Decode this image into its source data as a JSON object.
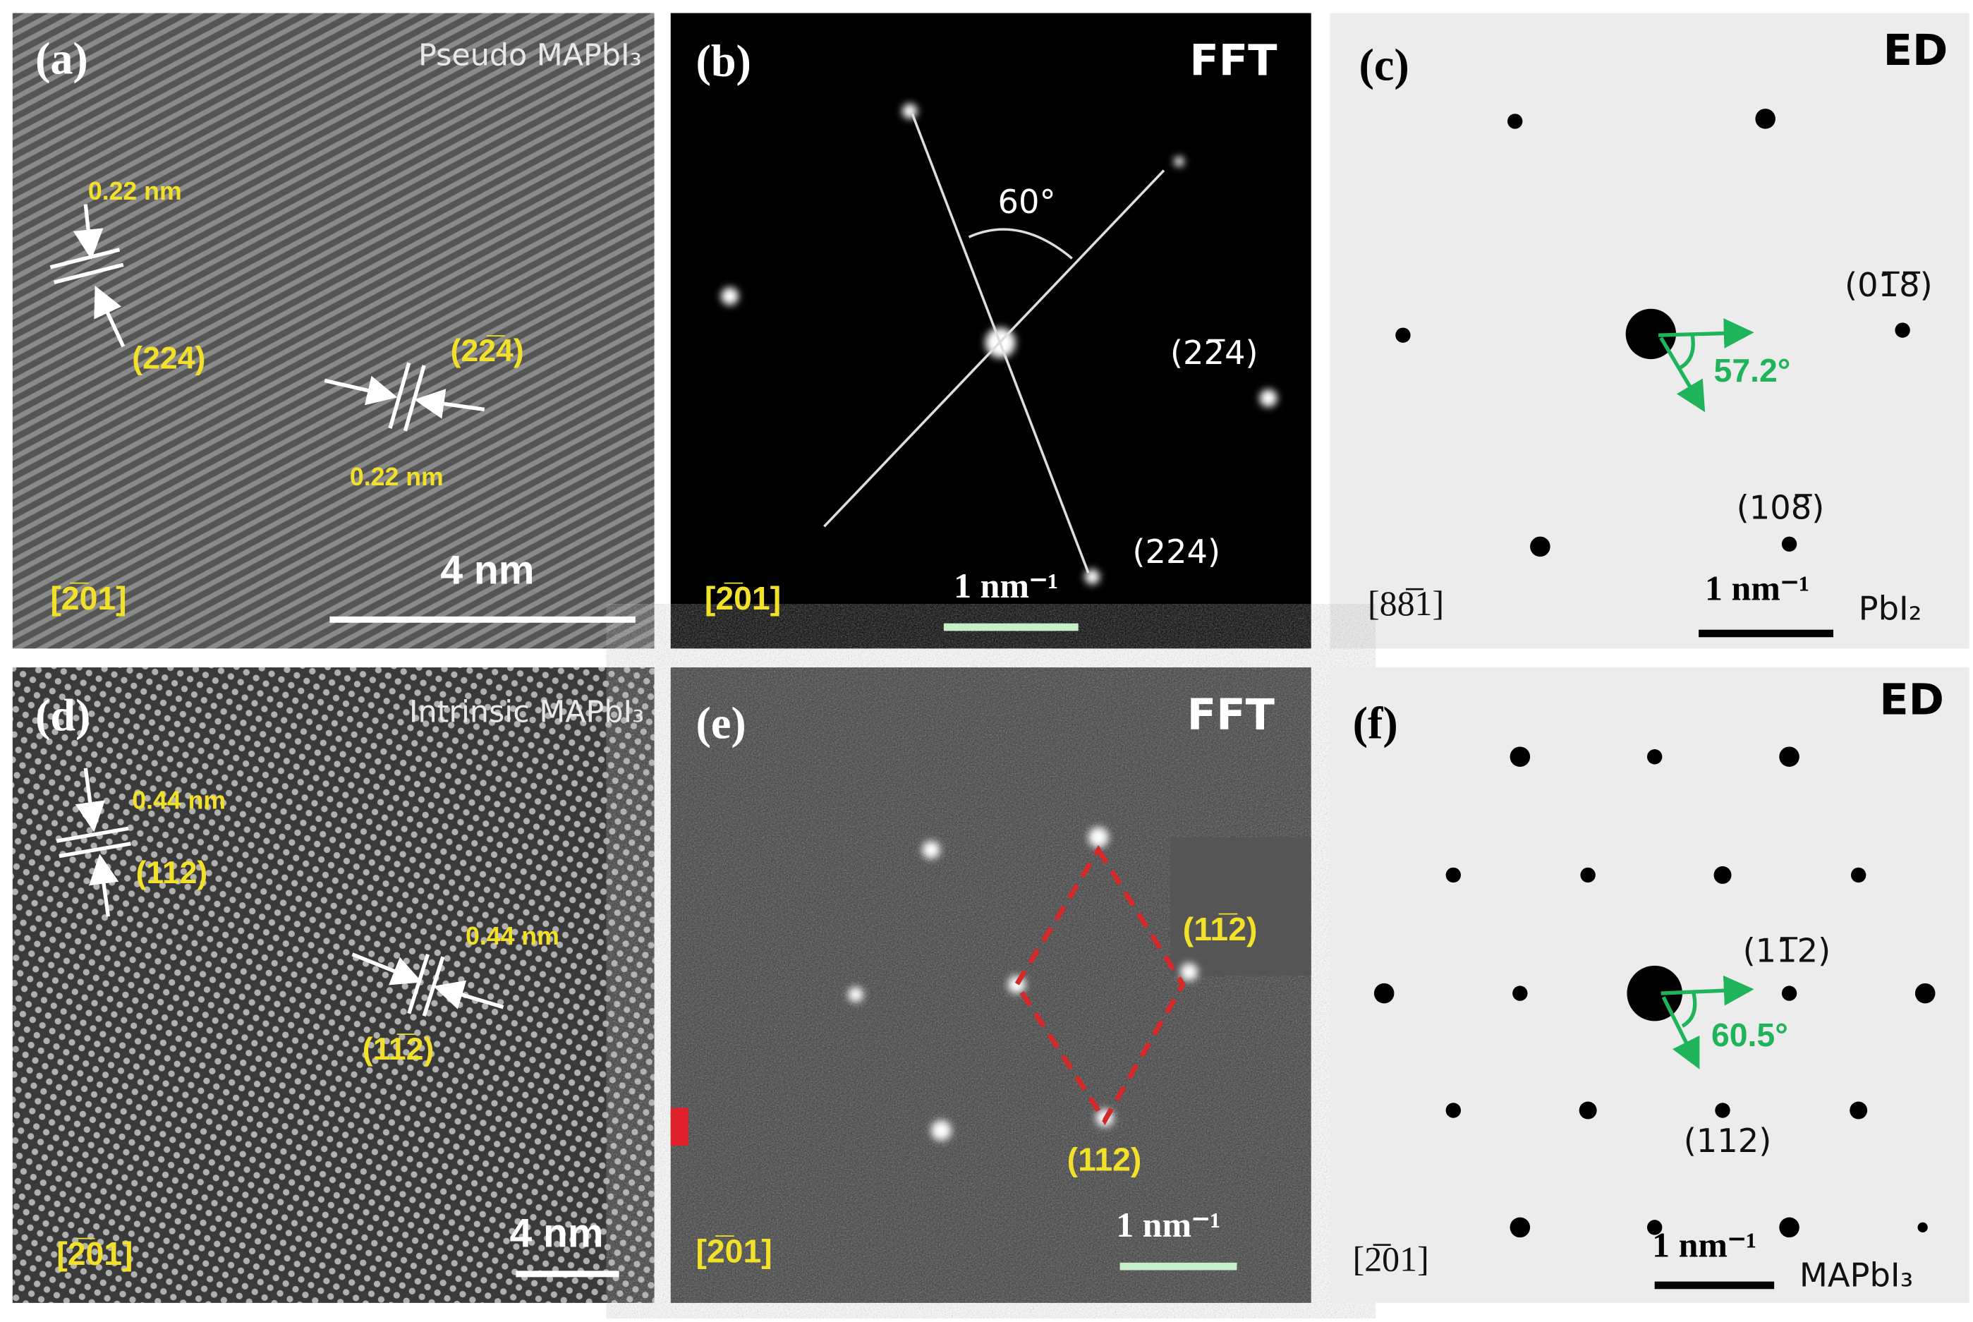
{
  "panels": [
    {
      "label": "(a)",
      "title": "Pseudo MAPbI₃",
      "annotations": [
        "0.22 nm",
        "(224)",
        "(22̅4)",
        "0.22 nm",
        "4 nm",
        "[2̅01]"
      ]
    },
    {
      "label": "(b)",
      "title": "FFT",
      "annotations": [
        "60°",
        "(22̅4)",
        "(224)",
        "[2̅01]",
        "1 nm⁻¹"
      ]
    },
    {
      "label": "(c)",
      "title": "ED",
      "annotations": [
        "(01̅8̅)",
        "57.2°",
        "(108̅)",
        "[88̅1]",
        "1 nm⁻¹",
        "PbI₂"
      ]
    },
    {
      "label": "(d)",
      "title": "Intrinsic MAPbI₃",
      "annotations": [
        "0.44 nm",
        "(112)",
        "0.44 nm",
        "(11̅2)",
        "4 nm",
        "[2̅01]"
      ]
    },
    {
      "label": "(e)",
      "title": "FFT",
      "annotations": [
        "(11̅2)",
        "(112)",
        "1 nm⁻¹",
        "[2̅01]"
      ]
    },
    {
      "label": "(f)",
      "title": "ED",
      "annotations": [
        "(11̅2)",
        "60.5°",
        "(112)",
        "[2̅01]",
        "1 nm⁻¹",
        "MAPbI₃"
      ]
    }
  ]
}
